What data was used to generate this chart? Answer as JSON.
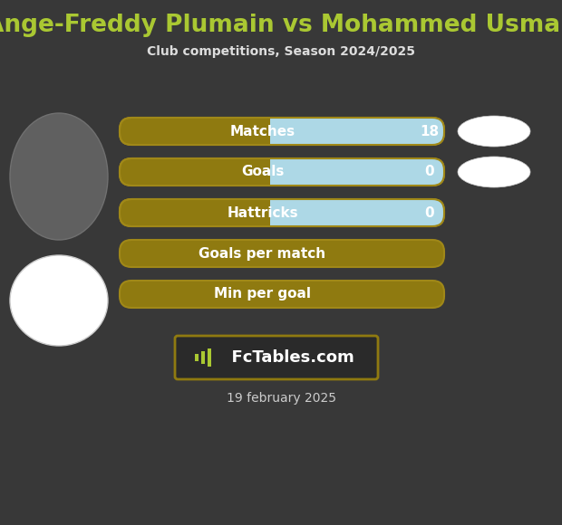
{
  "title": "Ange-Freddy Plumain vs Mohammed Usman",
  "subtitle": "Club competitions, Season 2024/2025",
  "background_color": "#383838",
  "title_color": "#aac832",
  "subtitle_color": "#dddddd",
  "date_text": "19 february 2025",
  "date_color": "#cccccc",
  "rows": [
    {
      "label": "Matches",
      "value": "18",
      "has_value": true
    },
    {
      "label": "Goals",
      "value": "0",
      "has_value": true
    },
    {
      "label": "Hattricks",
      "value": "0",
      "has_value": true
    },
    {
      "label": "Goals per match",
      "value": "",
      "has_value": false
    },
    {
      "label": "Min per goal",
      "value": "",
      "has_value": false
    }
  ],
  "bar_left_color": "#8f7a10",
  "bar_right_color": "#add8e6",
  "bar_outline_color": "#a08818",
  "label_color": "#ffffff",
  "value_color": "#ffffff",
  "watermark_text": "  FcTables.com",
  "watermark_bg": "#2a2a2a",
  "watermark_border": "#8f7a10",
  "ellipse_color": "#ffffff",
  "ellipse_edge_color": "#cccccc"
}
